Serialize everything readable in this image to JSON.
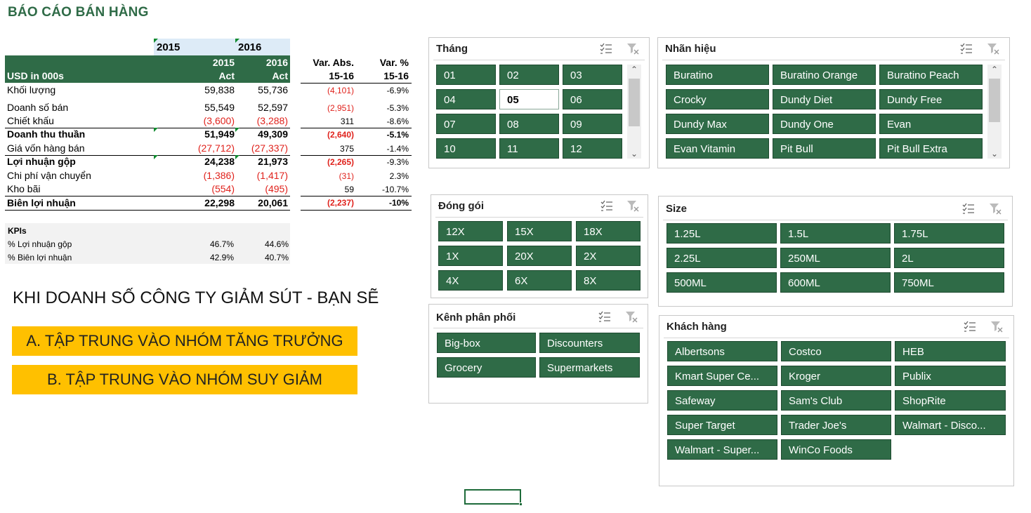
{
  "title": "BÁO CÁO BÁN HÀNG",
  "report": {
    "year_header_1": "2015",
    "year_header_2": "2016",
    "unit_label": "USD in 000s",
    "col1_year": "2015",
    "col1_sub": "Act",
    "col2_year": "2016",
    "col2_sub": "Act",
    "var_abs_1": "Var. Abs.",
    "var_abs_2": "15-16",
    "var_pct_1": "Var. %",
    "var_pct_2": "15-16",
    "rows": [
      {
        "label": "Khối lượng",
        "v2015": "59,838",
        "v2016": "55,736",
        "var_abs": "(4,101)",
        "var_pct": "-6.9%"
      },
      {
        "label": "Doanh số bán",
        "v2015": "55,549",
        "v2016": "52,597",
        "var_abs": "(2,951)",
        "var_pct": "-5.3%"
      },
      {
        "label": "Chiết khấu",
        "v2015": "(3,600)",
        "v2016": "(3,288)",
        "var_abs": "311",
        "var_pct": "-8.6%"
      },
      {
        "label": "Doanh thu thuần",
        "v2015": "51,949",
        "v2016": "49,309",
        "var_abs": "(2,640)",
        "var_pct": "-5.1%"
      },
      {
        "label": "Giá vốn hàng bán",
        "v2015": "(27,712)",
        "v2016": "(27,337)",
        "var_abs": "375",
        "var_pct": "-1.4%"
      },
      {
        "label": "Lợi nhuận gộp",
        "v2015": "24,238",
        "v2016": "21,973",
        "var_abs": "(2,265)",
        "var_pct": "-9.3%"
      },
      {
        "label": "Chi phí vận chuyển",
        "v2015": "(1,386)",
        "v2016": "(1,417)",
        "var_abs": "(31)",
        "var_pct": "2.3%"
      },
      {
        "label": "Kho bãi",
        "v2015": "(554)",
        "v2016": "(495)",
        "var_abs": "59",
        "var_pct": "-10.7%"
      },
      {
        "label": "Biên lợi nhuận",
        "v2015": "22,298",
        "v2016": "20,061",
        "var_abs": "(2,237)",
        "var_pct": "-10%"
      }
    ]
  },
  "kpis": {
    "title": "KPIs",
    "rows": [
      {
        "label": "% Lợi nhuận gộp",
        "v2015": "46.7%",
        "v2016": "44.6%"
      },
      {
        "label": "% Biên lợi nhuận",
        "v2015": "42.9%",
        "v2016": "40.7%"
      }
    ]
  },
  "question": "KHI DOANH SỐ CÔNG TY GIẢM SÚT - BẠN SẼ",
  "options": [
    "A. TẬP TRUNG VÀO NHÓM TĂNG TRƯỞNG",
    "B. TẬP TRUNG VÀO NHÓM SUY GIẢM"
  ],
  "slicers": {
    "thang": {
      "title": "Tháng",
      "items": [
        "01",
        "02",
        "03",
        "04",
        "05",
        "06",
        "07",
        "08",
        "09",
        "10",
        "11",
        "12"
      ],
      "selected": "05"
    },
    "nhan_hieu": {
      "title": "Nhãn hiệu",
      "items": [
        "Buratino",
        "Buratino Orange",
        "Buratino Peach",
        "Crocky",
        "Dundy Diet",
        "Dundy Free",
        "Dundy Max",
        "Dundy One",
        "Evan",
        "Evan Vitamin",
        "Pit Bull",
        "Pit Bull Extra"
      ]
    },
    "dong_goi": {
      "title": "Đóng gói",
      "items": [
        "12X",
        "15X",
        "18X",
        "1X",
        "20X",
        "2X",
        "4X",
        "6X",
        "8X"
      ]
    },
    "size": {
      "title": "Size",
      "items": [
        "1.25L",
        "1.5L",
        "1.75L",
        "2.25L",
        "250ML",
        "2L",
        "500ML",
        "600ML",
        "750ML"
      ]
    },
    "kenh": {
      "title": "Kênh phân phối",
      "items": [
        "Big-box",
        "Discounters",
        "Grocery",
        "Supermarkets"
      ]
    },
    "khach_hang": {
      "title": "Khách hàng",
      "items": [
        "Albertsons",
        "Costco",
        "HEB",
        "Kmart Super Ce...",
        "Kroger",
        "Publix",
        "Safeway",
        "Sam's Club",
        "ShopRite",
        "Super Target",
        "Trader Joe's",
        "Walmart - Disco...",
        "Walmart - Super...",
        "WinCo Foods"
      ]
    }
  },
  "icons": {
    "multiselect": "multiselect-icon",
    "clear_filter": "clear-filter-icon"
  },
  "colors": {
    "brand_green": "#2f6b47",
    "negative_red": "#e0221c",
    "answer_yellow": "#ffc000",
    "year_header_blue": "#ddebf7"
  }
}
